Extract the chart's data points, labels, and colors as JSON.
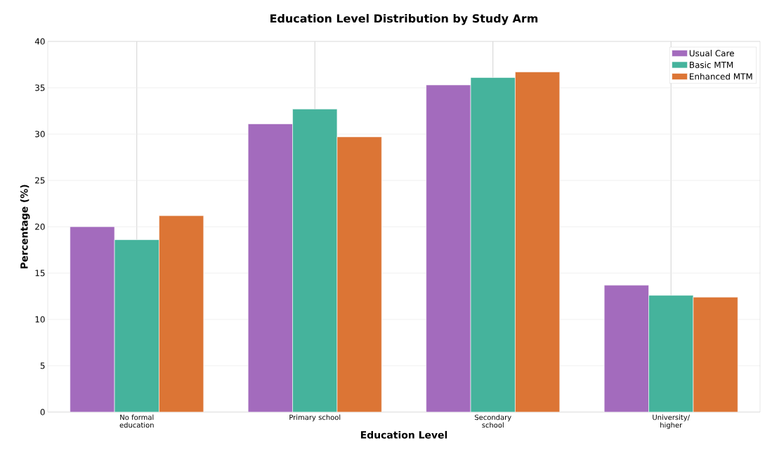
{
  "chart_data": {
    "type": "bar",
    "title": "Education Level Distribution by Study Arm",
    "xlabel": "Education Level",
    "ylabel": "Percentage (%)",
    "categories": [
      "No formal education",
      "Primary school",
      "Secondary school",
      "University/ higher"
    ],
    "series": [
      {
        "name": "Usual Care",
        "color": "#a36bbd",
        "values": [
          20.0,
          31.1,
          35.3,
          13.7
        ]
      },
      {
        "name": "Basic MTM",
        "color": "#45b39c",
        "values": [
          18.6,
          32.7,
          36.1,
          12.6
        ]
      },
      {
        "name": "Enhanced MTM",
        "color": "#dc7535",
        "values": [
          21.2,
          29.7,
          36.7,
          12.4
        ]
      }
    ],
    "ylim": [
      0,
      40
    ],
    "yticks": [
      0,
      5,
      10,
      15,
      20,
      25,
      30,
      35,
      40
    ],
    "grid": true,
    "legend": "top right"
  }
}
